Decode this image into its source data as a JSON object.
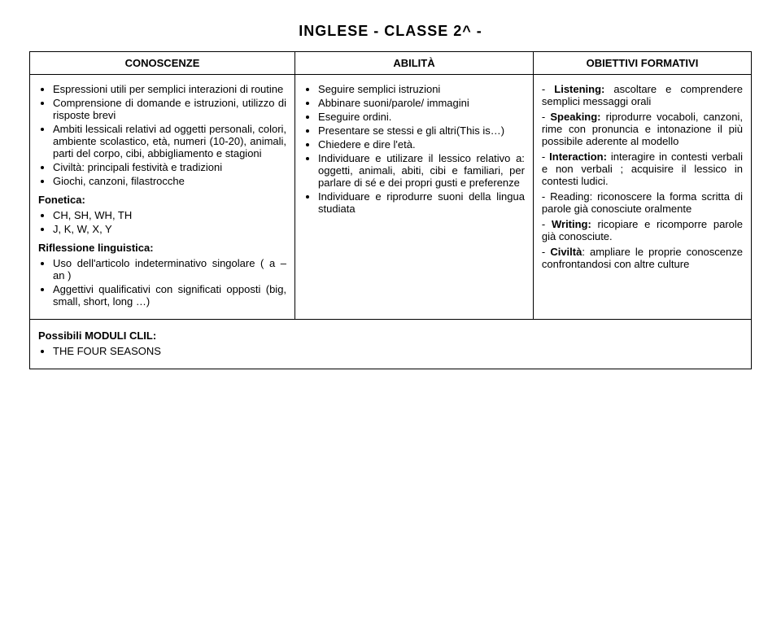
{
  "title": "INGLESE  - CLASSE 2^ -",
  "headers": {
    "c": "CONOSCENZE",
    "a": "ABILITÀ",
    "o": "OBIETTIVI FORMATIVI"
  },
  "conoscenze": {
    "items": [
      "Espressioni utili per semplici interazioni di routine",
      "Comprensione di domande e istruzioni, utilizzo di risposte brevi",
      "Ambiti lessicali relativi ad oggetti personali, colori, ambiente scolastico, età, numeri (10-20), animali, parti del corpo, cibi, abbigliamento e stagioni",
      "Civiltà: principali festività e tradizioni",
      "Giochi, canzoni, filastrocche"
    ],
    "fonetica_head": "Fonetica:",
    "fonetica": [
      "CH, SH, WH, TH",
      "J, K, W, X, Y"
    ],
    "riflessione_head": "Riflessione linguistica:",
    "riflessione": [
      "Uso dell'articolo indeterminativo singolare    ( a – an )",
      "Aggettivi qualificativi con significati opposti (big, small, short, long …)"
    ]
  },
  "abilita": [
    "Seguire semplici istruzioni",
    "Abbinare suoni/parole/ immagini",
    "Eseguire ordini.",
    "Presentare se stessi e gli altri(This is…)",
    "Chiedere e dire l'età.",
    "Individuare e utilizare il lessico relativo a: oggetti, animali, abiti, cibi e familiari, per parlare di sé e dei propri gusti e preferenze",
    "Individuare e riprodurre suoni della lingua studiata"
  ],
  "obiettivi": [
    "- <b>Listening:</b> ascoltare e comprendere semplici messaggi orali",
    "- <b>Speaking:</b> riprodurre vocaboli, canzoni, rime con pronuncia e intonazione il più possibile aderente al modello",
    "- <b>Interaction:</b> interagire in contesti verbali e non verbali ; acquisire il lessico in contesti ludici.",
    "- Reading: riconoscere la forma scritta di parole già conosciute oralmente",
    "- <b>Writing:</b> ricopiare e ricomporre parole già conosciute.",
    "- <b>Civiltà</b>: ampliare le proprie conoscenze confrontandosi con altre culture"
  ],
  "moduli_head": "Possibili MODULI CLIL:",
  "moduli": [
    "THE FOUR SEASONS"
  ]
}
